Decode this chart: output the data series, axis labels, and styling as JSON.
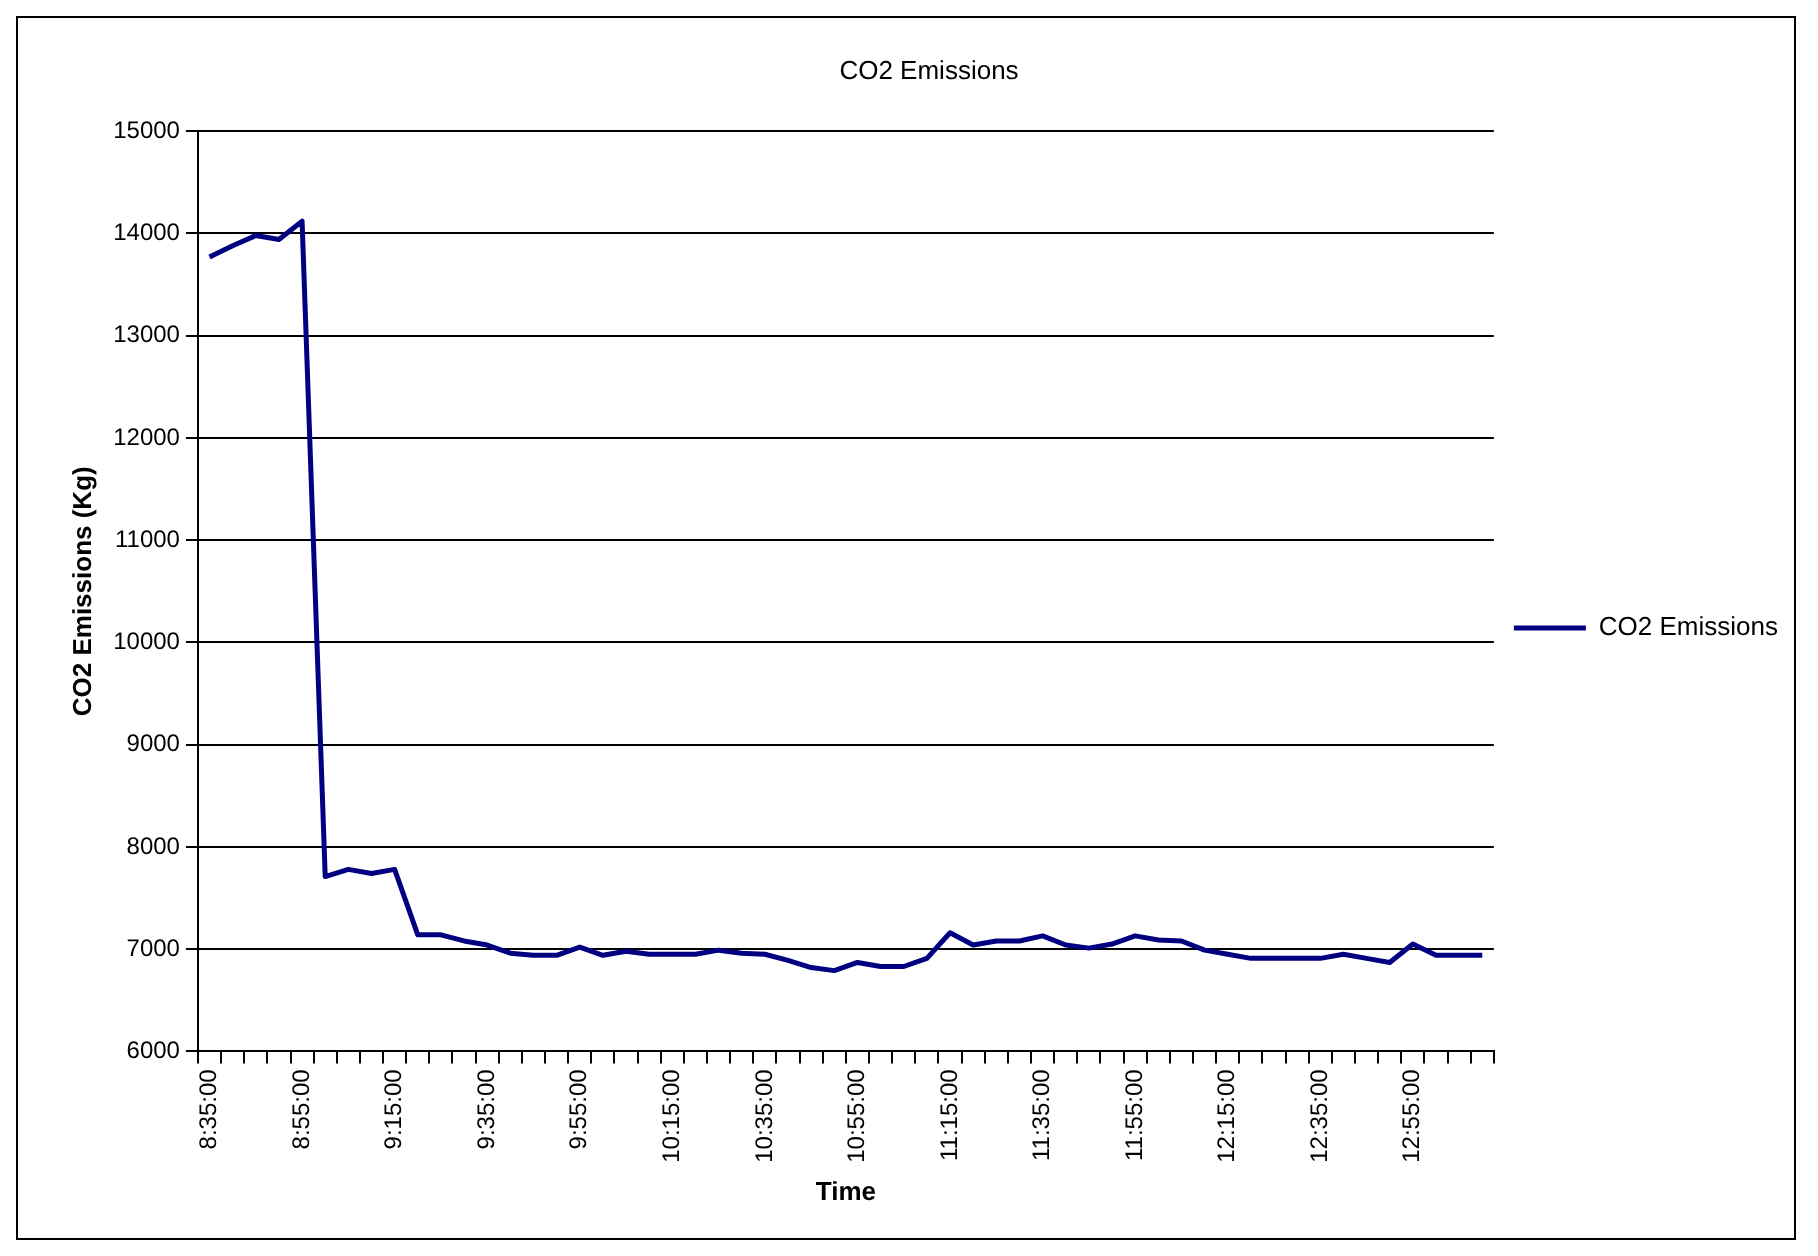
{
  "chart_data": {
    "type": "line",
    "title": "CO2 Emissions",
    "xlabel": "Time",
    "ylabel": "CO2 Emissions (Kg)",
    "categories": [
      "8:35:00",
      null,
      null,
      null,
      "8:55:00",
      null,
      null,
      null,
      "9:15:00",
      null,
      null,
      null,
      "9:35:00",
      null,
      null,
      null,
      "9:55:00",
      null,
      null,
      null,
      "10:15:00",
      null,
      null,
      null,
      "10:35:00",
      null,
      null,
      null,
      "10:55:00",
      null,
      null,
      null,
      "11:15:00",
      null,
      null,
      null,
      "11:35:00",
      null,
      null,
      null,
      "11:55:00",
      null,
      null,
      null,
      "12:15:00",
      null,
      null,
      null,
      "12:35:00",
      null,
      null,
      null,
      "12:55:00",
      null,
      null,
      null
    ],
    "series": [
      {
        "name": "CO2 Emissions",
        "color": "#000080",
        "values": [
          13770,
          13880,
          13980,
          13940,
          14120,
          7710,
          7780,
          7740,
          7780,
          7140,
          7140,
          7080,
          7040,
          6960,
          6940,
          6940,
          7020,
          6940,
          6980,
          6950,
          6950,
          6950,
          6990,
          6960,
          6950,
          6890,
          6820,
          6790,
          6870,
          6830,
          6830,
          6910,
          7160,
          7040,
          7080,
          7080,
          7130,
          7040,
          7010,
          7050,
          7130,
          7090,
          7080,
          6990,
          6950,
          6910,
          6910,
          6910,
          6910,
          6950,
          6910,
          6870,
          7050,
          6940,
          6940,
          6940
        ]
      }
    ],
    "ylim": [
      6000,
      15000
    ],
    "yticks": [
      6000,
      7000,
      8000,
      9000,
      10000,
      11000,
      12000,
      13000,
      14000,
      15000
    ],
    "grid": "y",
    "legend": "right",
    "marker": "none",
    "line_style": "solid"
  }
}
